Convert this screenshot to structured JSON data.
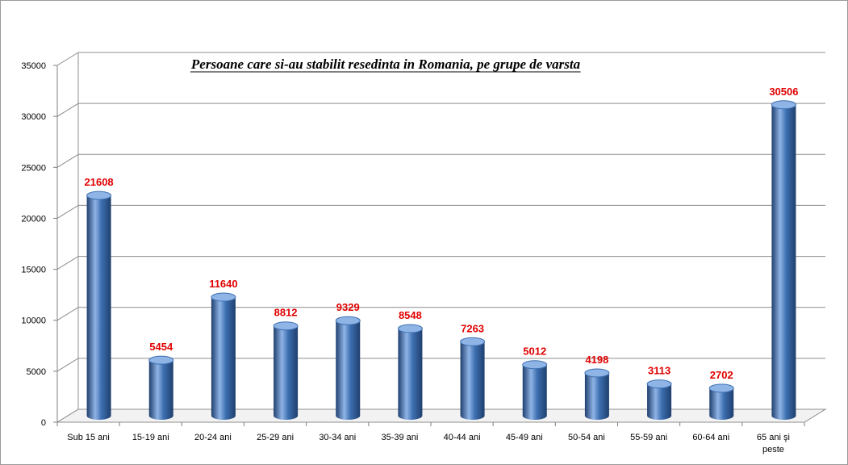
{
  "chart_data": {
    "type": "bar",
    "title": "Persoane care si-au stabilit resedinta in Romania, pe grupe de varsta",
    "xlabel": "",
    "ylabel": "",
    "categories": [
      "Sub 15 ani",
      "15-19 ani",
      "20-24 ani",
      "25-29 ani",
      "30-34 ani",
      "35-39 ani",
      "40-44 ani",
      "45-49 ani",
      "50-54 ani",
      "55-59 ani",
      "60-64 ani",
      "65 ani şi peste"
    ],
    "values": [
      21608,
      5454,
      11640,
      8812,
      9329,
      8548,
      7263,
      5012,
      4198,
      3113,
      2702,
      30506
    ],
    "ylim": [
      0,
      35000
    ],
    "yticks": [
      0,
      5000,
      10000,
      15000,
      20000,
      25000,
      30000,
      35000
    ],
    "grid": true,
    "legend": "none",
    "colors": {
      "bar": "#3d6fb0",
      "bar_light": "#8fb4e6",
      "bar_dark": "#1f3f6e",
      "data_label": "#e00000",
      "grid": "#8c8c8c"
    }
  }
}
